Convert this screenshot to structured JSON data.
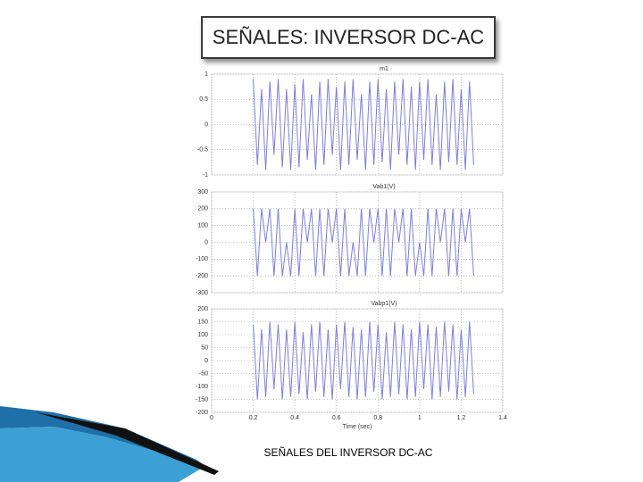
{
  "slide": {
    "title": "SEÑALES: INVERSOR DC-AC",
    "caption": "SEÑALES DEL INVERSOR DC-AC"
  },
  "chart_data": [
    {
      "type": "line",
      "title": "m1",
      "xlim": [
        0,
        1.4
      ],
      "ylim": [
        -1,
        1
      ],
      "yticks": [
        -1,
        -0.5,
        0,
        0.5,
        1
      ],
      "grid": true,
      "x": [
        0.2,
        0.22,
        0.24,
        0.26,
        0.28,
        0.3,
        0.32,
        0.34,
        0.36,
        0.38,
        0.4,
        0.42,
        0.44,
        0.46,
        0.48,
        0.5,
        0.52,
        0.54,
        0.56,
        0.58,
        0.6,
        0.62,
        0.64,
        0.66,
        0.68,
        0.7,
        0.72,
        0.74,
        0.76,
        0.78,
        0.8,
        0.82,
        0.84,
        0.86,
        0.88,
        0.9,
        0.92,
        0.94,
        0.96,
        0.98,
        1,
        1.02,
        1.04,
        1.06,
        1.08,
        1.1,
        1.12,
        1.14,
        1.16,
        1.18,
        1.2,
        1.22,
        1.24,
        1.26
      ],
      "series": [
        {
          "color": "#7b7fd6",
          "values": [
            0.9,
            -0.8,
            0.7,
            -0.9,
            0.85,
            -0.6,
            0.9,
            -0.85,
            0.7,
            -0.9,
            0.8,
            -0.85,
            0.9,
            -0.7,
            0.6,
            -0.9,
            0.85,
            -0.8,
            0.9,
            -0.6,
            0.75,
            -0.9,
            0.85,
            -0.8,
            0.9,
            -0.7,
            0.6,
            -0.9,
            0.85,
            -0.8,
            0.9,
            -0.75,
            0.7,
            -0.9,
            0.85,
            -0.6,
            0.9,
            -0.8,
            0.75,
            -0.9,
            0.85,
            -0.7,
            0.9,
            -0.8,
            0.6,
            -0.9,
            0.85,
            -0.75,
            0.9,
            -0.8,
            0.7,
            -0.9,
            0.85,
            -0.8
          ]
        }
      ]
    },
    {
      "type": "line",
      "title": "Vab1(V)",
      "xlim": [
        0,
        1.4
      ],
      "ylim": [
        -300,
        300
      ],
      "yticks": [
        -300,
        -200,
        -100,
        0,
        100,
        200,
        300
      ],
      "grid": true,
      "x": [
        0.2,
        0.22,
        0.24,
        0.26,
        0.28,
        0.3,
        0.32,
        0.34,
        0.36,
        0.38,
        0.4,
        0.42,
        0.44,
        0.46,
        0.48,
        0.5,
        0.52,
        0.54,
        0.56,
        0.58,
        0.6,
        0.62,
        0.64,
        0.66,
        0.68,
        0.7,
        0.72,
        0.74,
        0.76,
        0.78,
        0.8,
        0.82,
        0.84,
        0.86,
        0.88,
        0.9,
        0.92,
        0.94,
        0.96,
        0.98,
        1,
        1.02,
        1.04,
        1.06,
        1.08,
        1.1,
        1.12,
        1.14,
        1.16,
        1.18,
        1.2,
        1.22,
        1.24,
        1.26
      ],
      "series": [
        {
          "color": "#7b7fd6",
          "values": [
            200,
            -200,
            200,
            0,
            200,
            -200,
            200,
            -200,
            0,
            -200,
            200,
            -200,
            200,
            0,
            200,
            -200,
            200,
            -200,
            200,
            0,
            200,
            -200,
            200,
            -200,
            0,
            -200,
            200,
            -200,
            200,
            0,
            200,
            -200,
            200,
            -200,
            200,
            0,
            200,
            -200,
            200,
            -200,
            0,
            -200,
            200,
            -200,
            200,
            0,
            200,
            -200,
            200,
            -200,
            200,
            0,
            200,
            -200
          ]
        }
      ]
    },
    {
      "type": "line",
      "title": "Vabp1(V)",
      "xlim": [
        0,
        1.4
      ],
      "ylim": [
        -200,
        200
      ],
      "yticks": [
        -200,
        -150,
        -100,
        -50,
        0,
        50,
        100,
        150,
        200
      ],
      "grid": true,
      "xlabel": "Time (sec)",
      "xticks": [
        0,
        0.2,
        0.4,
        0.6,
        0.8,
        1,
        1.2,
        1.4
      ],
      "x": [
        0.2,
        0.22,
        0.24,
        0.26,
        0.28,
        0.3,
        0.32,
        0.34,
        0.36,
        0.38,
        0.4,
        0.42,
        0.44,
        0.46,
        0.48,
        0.5,
        0.52,
        0.54,
        0.56,
        0.58,
        0.6,
        0.62,
        0.64,
        0.66,
        0.68,
        0.7,
        0.72,
        0.74,
        0.76,
        0.78,
        0.8,
        0.82,
        0.84,
        0.86,
        0.88,
        0.9,
        0.92,
        0.94,
        0.96,
        0.98,
        1,
        1.02,
        1.04,
        1.06,
        1.08,
        1.1,
        1.12,
        1.14,
        1.16,
        1.18,
        1.2,
        1.22,
        1.24,
        1.26
      ],
      "series": [
        {
          "color": "#7b7fd6",
          "values": [
            140,
            -150,
            120,
            -140,
            150,
            -110,
            140,
            -150,
            120,
            -140,
            150,
            -130,
            110,
            -150,
            140,
            -120,
            150,
            -140,
            120,
            -150,
            140,
            -110,
            150,
            -140,
            130,
            -150,
            120,
            -140,
            150,
            -120,
            140,
            -150,
            110,
            -140,
            150,
            -130,
            140,
            -150,
            120,
            -140,
            150,
            -110,
            140,
            -150,
            130,
            -140,
            150,
            -120,
            140,
            -150,
            120,
            -140,
            150,
            -130
          ]
        }
      ]
    }
  ]
}
